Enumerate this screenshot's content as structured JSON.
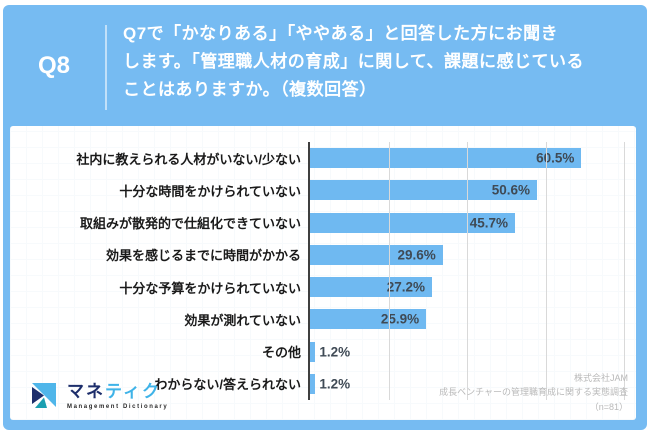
{
  "header": {
    "question_number": "Q8",
    "question_lines": [
      "Q7で「かなりある」「ややある」と回答した方にお聞き",
      "します。「管理職人材の育成」に関して、課題に感じている",
      "ことはありますか。（複数回答）"
    ]
  },
  "chart_data": {
    "type": "bar",
    "orientation": "horizontal",
    "title": "",
    "categories": [
      "社内に教えられる人材がいない/少ない",
      "十分な時間をかけられていない",
      "取組みが散発的で仕組化できていない",
      "効果を感じるまでに時間がかかる",
      "十分な予算をかけられていない",
      "効果が測れていない",
      "その他",
      "わからない/答えられない"
    ],
    "values": [
      60.5,
      50.6,
      45.7,
      29.6,
      27.2,
      25.9,
      1.2,
      1.2
    ],
    "value_labels": [
      "60.5%",
      "50.6%",
      "45.7%",
      "29.6%",
      "27.2%",
      "25.9%",
      "1.2%",
      "1.2%"
    ],
    "xlim": [
      0,
      70
    ],
    "gridlines_pct": [
      17.5,
      35,
      52.5,
      70
    ],
    "grid": true,
    "legend": false,
    "bar_color": "#6FB9F1"
  },
  "footer": {
    "logo": {
      "main_navy": "マネ",
      "main_blue": "ティク",
      "subtext": "Management Dictionary"
    },
    "source_lines": [
      "株式会社JAM",
      "成長ベンチャーの管理職育成に関する実態調査",
      "（n=81）"
    ]
  },
  "colors": {
    "frame_blue": "#76BBF2",
    "bar_blue": "#6FB9F1",
    "logo_navy": "#1D2E6B",
    "logo_teal": "#1A9FB0",
    "logo_lightblue": "#4FB6EA",
    "source_gray": "#b9b9b9"
  }
}
